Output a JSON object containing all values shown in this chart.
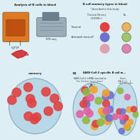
{
  "bg_color": "#ddeef5",
  "panel_a_bg": "#f0f0f0",
  "panel_b_bg": "#f0f0f0",
  "panel_c_bg": "#ddeef5",
  "panel_d_bg": "#c8e8f0",
  "panel_a_title": "Analysis of B cells in blood",
  "panel_b_title": "B cell memory types in blood",
  "panel_b_subtitle": "*described in this study",
  "panel_c_title": "memory",
  "panel_d_label": "D)",
  "panel_d_title": "SARS-CoV-2 specific B cell m...",
  "panel_d_sub1": "SARS-CoV-2 mRNA vaccination",
  "panel_d_sub1b": "Post 3rd dose (acute phase)",
  "panel_d_sub2": "Sever...",
  "panel_d_sub2b": "Week 1 IC...",
  "col_header_left": "Classical Memory\n(CD45RB+)",
  "col_header_right": "No-",
  "row1_label": "Classical",
  "row2_label": "Activated classical*",
  "cytof_color": "#e07820",
  "cytof_screen": "#c05010",
  "citeseq_color": "#9aacb8",
  "citeseq_screen": "#6a8090",
  "blood_color": "#cc2222",
  "oval_bg_c": "#b8d8e8",
  "oval_border_c": "#88aabb",
  "oval_bg_d1": "#c0dcea",
  "oval_bg_d2": "#c0dcea",
  "col1_classical": "#e04040",
  "col1_activated": "#7070cc",
  "col1_extra": "#e0a0b0",
  "col2_classical": "#f0a030",
  "col2_activated": "#90b840",
  "col2_extra": "#e060a0",
  "dot_colors": [
    "#e04040",
    "#7070cc",
    "#f0a030",
    "#90b840",
    "#e060a0",
    "#e04040",
    "#7070cc",
    "#f0a030",
    "#90b840",
    "#e060a0",
    "#e04040",
    "#7070cc",
    "#f0a030",
    "#90b840",
    "#e060a0",
    "#e04040",
    "#7070cc",
    "#f0a030",
    "#90b840",
    "#e060a0",
    "#e04040",
    "#7070cc",
    "#f0a030",
    "#90b840",
    "#e060a0"
  ],
  "dot_colors_c": [
    "#e04040",
    "#e04040",
    "#e04040",
    "#e04040",
    "#e04040",
    "#e04040",
    "#e04040",
    "#e04040",
    "#e04040",
    "#e04040",
    "#e04040",
    "#e04040"
  ],
  "wspace": 0.03,
  "hspace": 0.03
}
